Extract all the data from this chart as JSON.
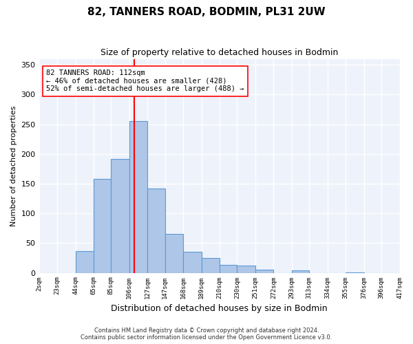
{
  "title": "82, TANNERS ROAD, BODMIN, PL31 2UW",
  "subtitle": "Size of property relative to detached houses in Bodmin",
  "xlabel": "Distribution of detached houses by size in Bodmin",
  "ylabel": "Number of detached properties",
  "bar_color": "#aec6e8",
  "bar_edge_color": "#5a9ad4",
  "background_color": "#eef2fb",
  "grid_color": "#ffffff",
  "vline_x": 112,
  "vline_color": "red",
  "annotation_text": "82 TANNERS ROAD: 112sqm\n← 46% of detached houses are smaller (428)\n52% of semi-detached houses are larger (488) →",
  "annotation_box_color": "white",
  "annotation_box_edge": "red",
  "footer_text": "Contains HM Land Registry data © Crown copyright and database right 2024.\nContains public sector information licensed under the Open Government Licence v3.0.",
  "bin_edges": [
    2,
    23,
    44,
    65,
    85,
    106,
    127,
    147,
    168,
    189,
    210,
    230,
    251,
    272,
    293,
    313,
    334,
    355,
    376,
    396,
    417
  ],
  "counts": [
    0,
    0,
    37,
    158,
    192,
    255,
    142,
    65,
    35,
    25,
    13,
    12,
    5,
    0,
    4,
    0,
    0,
    1,
    0,
    0
  ],
  "tick_labels": [
    "2sqm",
    "23sqm",
    "44sqm",
    "65sqm",
    "85sqm",
    "106sqm",
    "127sqm",
    "147sqm",
    "168sqm",
    "189sqm",
    "210sqm",
    "230sqm",
    "251sqm",
    "272sqm",
    "293sqm",
    "313sqm",
    "334sqm",
    "355sqm",
    "376sqm",
    "396sqm",
    "417sqm"
  ],
  "ylim": [
    0,
    360
  ],
  "yticks": [
    0,
    50,
    100,
    150,
    200,
    250,
    300,
    350
  ]
}
